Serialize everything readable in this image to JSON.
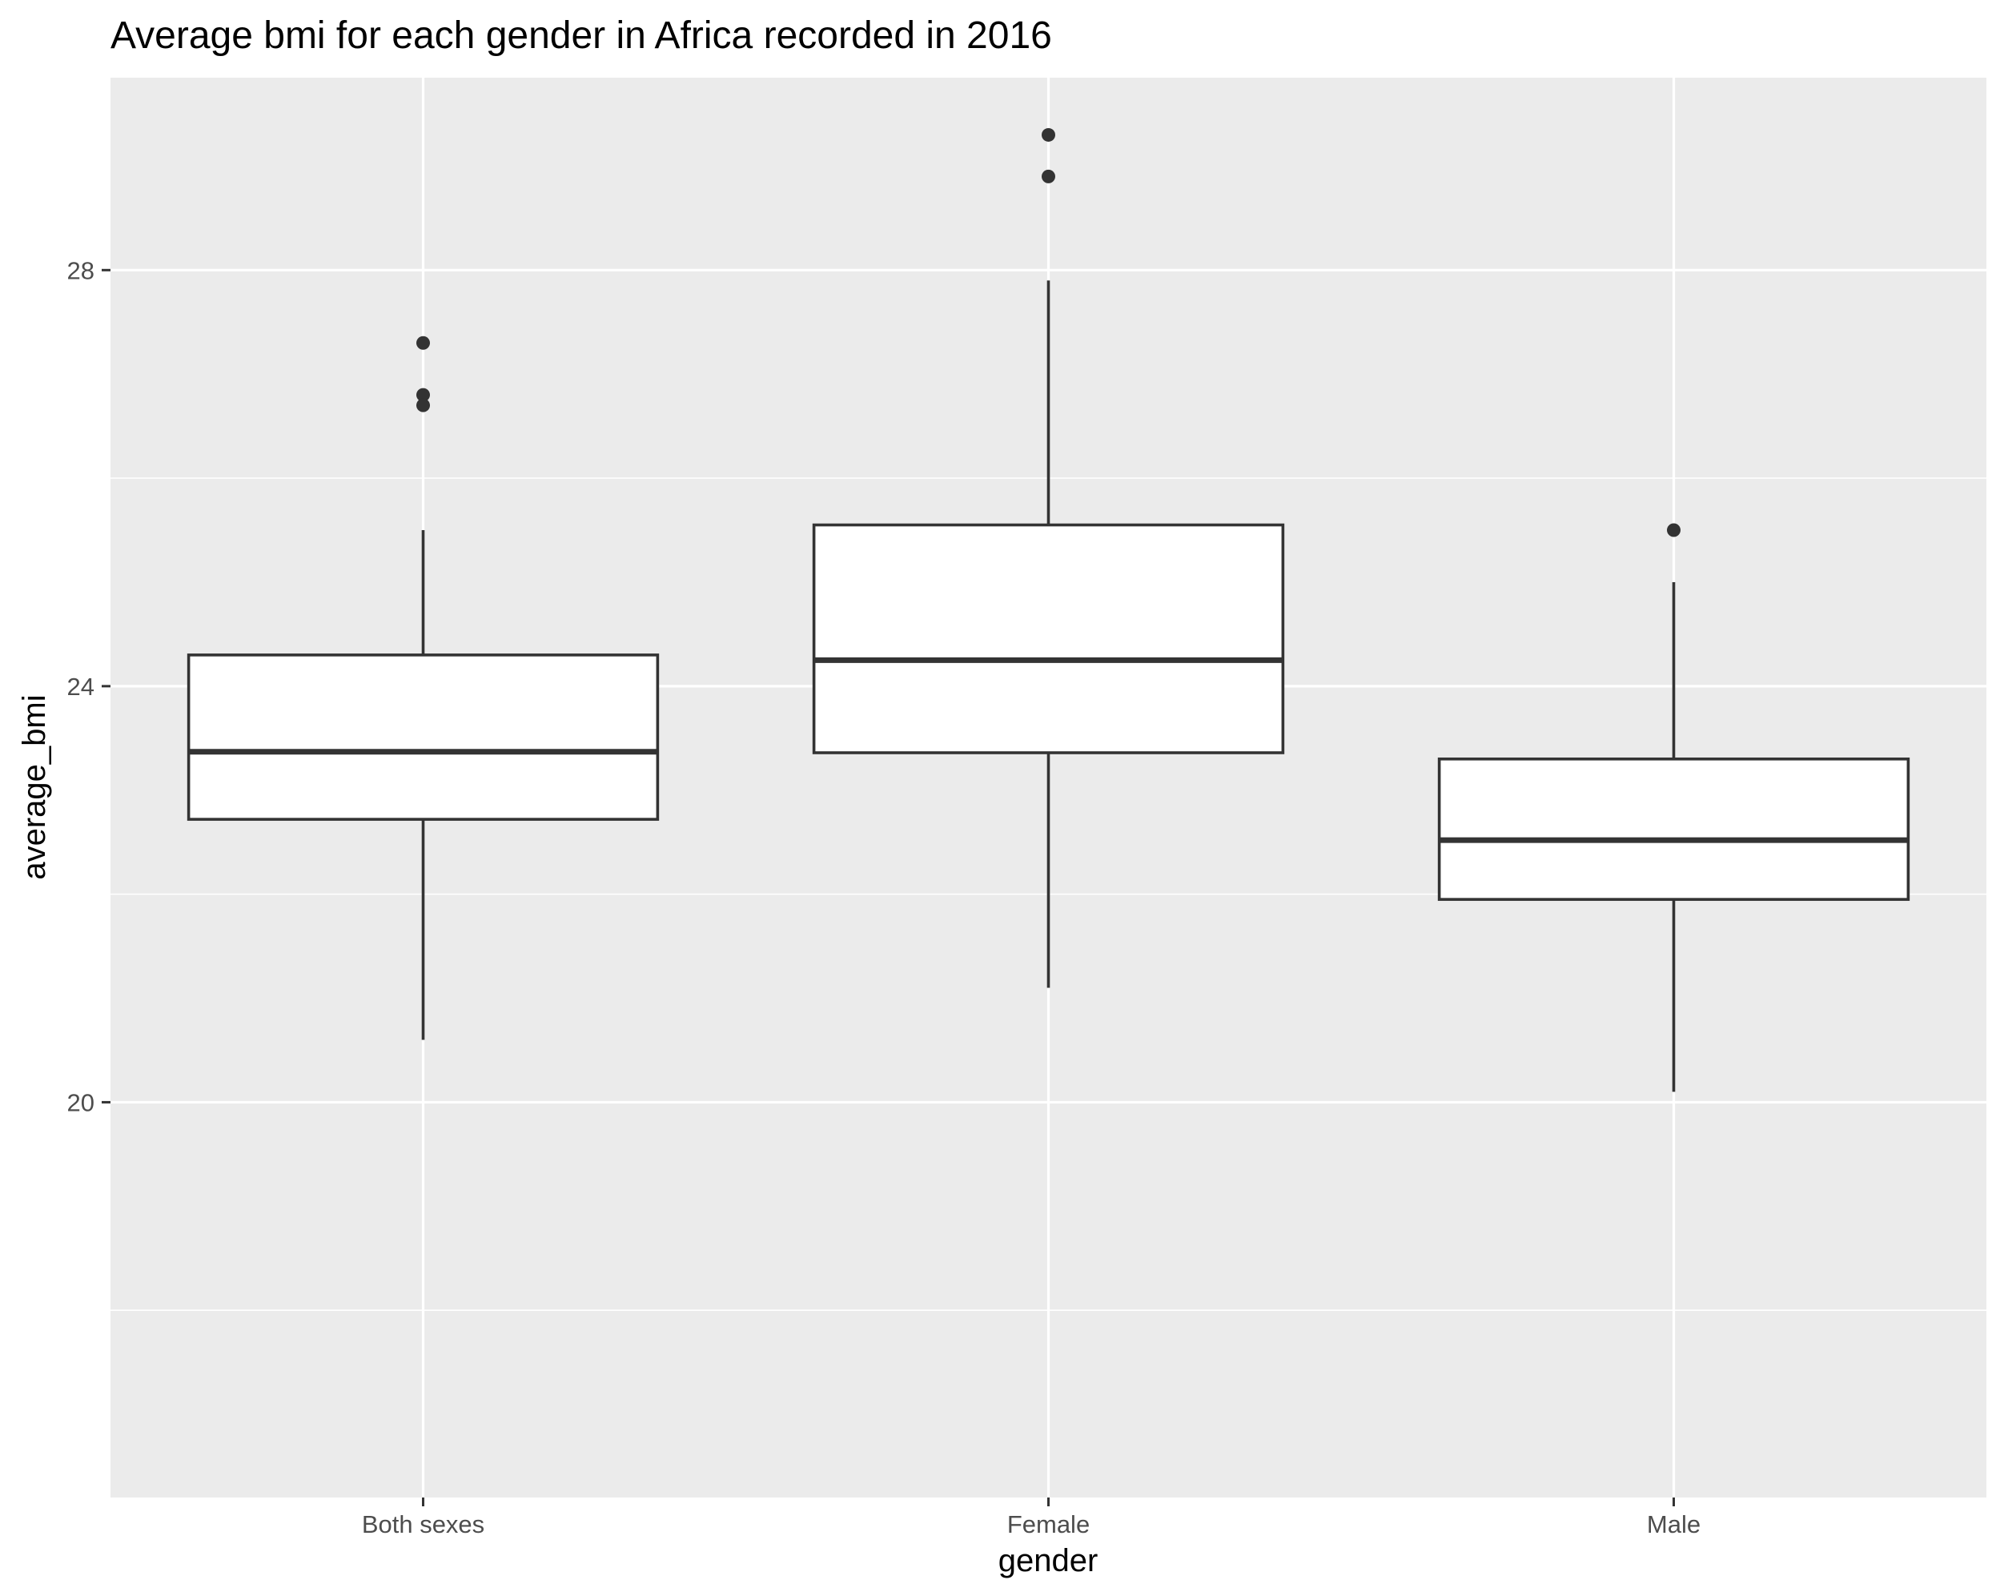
{
  "chart_data": {
    "type": "boxplot",
    "title": "Average bmi for each gender in Africa recorded in 2016",
    "xlabel": "gender",
    "ylabel": "average_bmi",
    "categories": [
      "Both sexes",
      "Female",
      "Male"
    ],
    "ylim": [
      16.2,
      29.85
    ],
    "yticks": [
      20,
      24,
      28
    ],
    "ytick_labels": [
      "20",
      "24",
      "28"
    ],
    "y_minor_gridlines": [
      18,
      22,
      26,
      30
    ],
    "grid": true,
    "legend": "none",
    "boxes": [
      {
        "category": "Both sexes",
        "lower_whisker": 20.6,
        "q1": 22.72,
        "median": 23.37,
        "q3": 24.3,
        "upper_whisker": 25.5,
        "outliers": [
          27.3,
          26.8,
          26.7
        ]
      },
      {
        "category": "Female",
        "lower_whisker": 21.1,
        "q1": 23.36,
        "median": 24.25,
        "q3": 25.55,
        "upper_whisker": 27.9,
        "outliers": [
          29.3,
          28.9
        ]
      },
      {
        "category": "Male",
        "lower_whisker": 20.1,
        "q1": 21.95,
        "median": 22.52,
        "q3": 23.3,
        "upper_whisker": 25.0,
        "outliers": [
          25.5
        ]
      }
    ],
    "colors": {
      "panel_background": "#ebebeb",
      "gridline": "#ffffff",
      "box_fill": "#ffffff",
      "box_stroke": "#333333",
      "outlier": "#333333",
      "tick_text": "#4d4d4d",
      "tick_mark": "#333333",
      "title_text": "#000000"
    }
  }
}
